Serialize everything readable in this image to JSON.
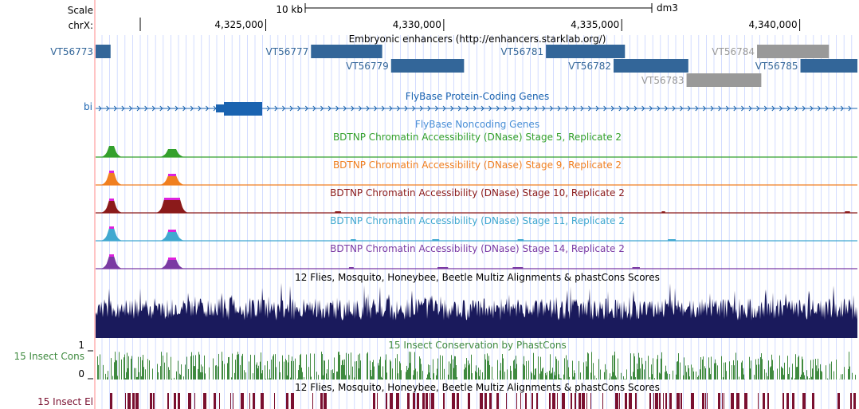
{
  "header": {
    "scale_label": "Scale",
    "scale_bar_label": "10 kb",
    "assembly": "dm3",
    "chrom_label": "chrX:",
    "ticks": [
      {
        "label": "4,325,000",
        "pos": 4325000
      },
      {
        "label": "4,330,000",
        "pos": 4330000
      },
      {
        "label": "4,335,000",
        "pos": 4335000
      },
      {
        "label": "4,340,000",
        "pos": 4340000
      }
    ]
  },
  "region": {
    "start": 4320400,
    "end": 4341800,
    "scale_bar_start": 4320400,
    "scale_bar_end": 4330400
  },
  "colors": {
    "enhancer": "#336699",
    "enhancer_gray": "#999999",
    "flybase": "#1a63b0",
    "flybase_title": "#4a8fd6",
    "stage5": "#33a02c",
    "stage9": "#f07f20",
    "stage10": "#8b1a1a",
    "stage11": "#40a8d0",
    "stage14": "#7a3aa3",
    "highlight": "#dd22dd",
    "multiz": "#1a1a5c",
    "phastcons": "#3f8a3f",
    "elements": "#7a1030",
    "red_line": "#ff8888",
    "grid": "#c8d4ff"
  },
  "tracks": {
    "enhancers": {
      "title": "Embryonic enhancers (http://enhancers.starklab.org/)",
      "items": [
        {
          "id": "e1",
          "label": "VT56773",
          "start": 4320400,
          "end": 4320820,
          "row": 0,
          "gray": false
        },
        {
          "id": "e2",
          "label": "VT56777",
          "start": 4326450,
          "end": 4328450,
          "row": 0,
          "gray": false
        },
        {
          "id": "e3",
          "label": "VT56779",
          "start": 4328700,
          "end": 4330750,
          "row": 1,
          "gray": false
        },
        {
          "id": "e4",
          "label": "VT56781",
          "start": 4333050,
          "end": 4335270,
          "row": 0,
          "gray": false
        },
        {
          "id": "e5",
          "label": "VT56782",
          "start": 4334950,
          "end": 4337050,
          "row": 1,
          "gray": false
        },
        {
          "id": "e6",
          "label": "VT56783",
          "start": 4337000,
          "end": 4339100,
          "row": 2,
          "gray": true
        },
        {
          "id": "e7",
          "label": "VT56784",
          "start": 4338980,
          "end": 4341000,
          "row": 0,
          "gray": true
        },
        {
          "id": "e8",
          "label": "VT56785",
          "start": 4340200,
          "end": 4341800,
          "row": 1,
          "gray": false
        }
      ]
    },
    "flybase_coding": {
      "title": "FlyBase Protein-Coding Genes",
      "gene_label": "bi"
    },
    "flybase_noncoding": {
      "title": "FlyBase Noncoding Genes"
    },
    "dnase": [
      {
        "key": "s5",
        "title": "BDTNP Chromatin Accessibility (DNase) Stage 5, Replicate 2",
        "colorKey": "stage5"
      },
      {
        "key": "s9",
        "title": "BDTNP Chromatin Accessibility (DNase) Stage 9, Replicate 2",
        "colorKey": "stage9"
      },
      {
        "key": "s10",
        "title": "BDTNP Chromatin Accessibility (DNase) Stage 10, Replicate 2",
        "colorKey": "stage10"
      },
      {
        "key": "s11",
        "title": "BDTNP Chromatin Accessibility (DNase) Stage 11, Replicate 2",
        "colorKey": "stage11"
      },
      {
        "key": "s14",
        "title": "BDTNP Chromatin Accessibility (DNase) Stage 14, Replicate 2",
        "colorKey": "stage14"
      }
    ],
    "multiz": {
      "title": "12 Flies, Mosquito, Honeybee, Beetle Multiz Alignments & phastCons Scores"
    },
    "phastcons": {
      "title": "15 Insect Conservation by PhastCons",
      "side_label": "15 Insect Cons",
      "y_max": "1",
      "y_min": "0"
    },
    "elements": {
      "title": "12 Flies, Mosquito, Honeybee, Beetle Multiz Alignments & phastCons Scores",
      "side_label": "15 Insect El"
    }
  }
}
